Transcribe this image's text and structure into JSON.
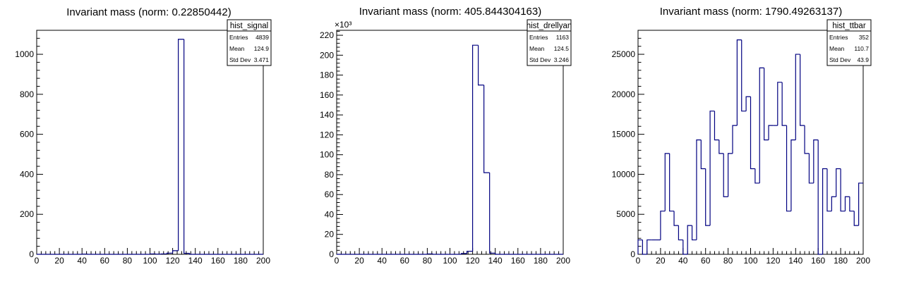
{
  "chart_data": [
    {
      "type": "histogram",
      "title": "Invariant mass (norm: 0.22850442)",
      "xlim": [
        0,
        200
      ],
      "ylim": [
        0,
        1120
      ],
      "x_ticks": [
        "0",
        "20",
        "40",
        "60",
        "80",
        "100",
        "120",
        "140",
        "160",
        "180",
        "200"
      ],
      "y_ticks": [
        0,
        200,
        400,
        600,
        800,
        1000
      ],
      "y_tick_labels": [
        "0",
        "200",
        "400",
        "600",
        "800",
        "1000"
      ],
      "y_exponent": "",
      "line_color": "#000080",
      "stats": {
        "name": "hist_signal",
        "rows": [
          {
            "label": "Entries",
            "value": "4839"
          },
          {
            "label": "Mean",
            "value": "124.9"
          },
          {
            "label": "Std Dev",
            "value": "3.471"
          }
        ]
      },
      "bins": [
        {
          "x0": 0,
          "x1": 40,
          "y": 0
        },
        {
          "x0": 40,
          "x1": 45,
          "y": 1
        },
        {
          "x0": 45,
          "x1": 100,
          "y": 0
        },
        {
          "x0": 100,
          "x1": 105,
          "y": 2
        },
        {
          "x0": 105,
          "x1": 110,
          "y": 1
        },
        {
          "x0": 110,
          "x1": 115,
          "y": 2
        },
        {
          "x0": 115,
          "x1": 120,
          "y": 6
        },
        {
          "x0": 120,
          "x1": 125,
          "y": 18
        },
        {
          "x0": 125,
          "x1": 130,
          "y": 1075
        },
        {
          "x0": 130,
          "x1": 135,
          "y": 5
        },
        {
          "x0": 135,
          "x1": 200,
          "y": 0
        }
      ]
    },
    {
      "type": "histogram",
      "title": "Invariant mass (norm: 405.844304163)",
      "xlim": [
        0,
        200
      ],
      "ylim": [
        0,
        225
      ],
      "x_ticks": [
        "0",
        "20",
        "40",
        "60",
        "80",
        "100",
        "120",
        "140",
        "160",
        "180",
        "200"
      ],
      "y_ticks": [
        0,
        20,
        40,
        60,
        80,
        100,
        120,
        140,
        160,
        180,
        200,
        220
      ],
      "y_tick_labels": [
        "0",
        "20",
        "40",
        "60",
        "80",
        "100",
        "120",
        "140",
        "160",
        "180",
        "200",
        "220"
      ],
      "y_exponent": "×10³",
      "line_color": "#000080",
      "stats": {
        "name": "hist_drellyan",
        "rows": [
          {
            "label": "Entries",
            "value": "1163"
          },
          {
            "label": "Mean",
            "value": "124.5"
          },
          {
            "label": "Std Dev",
            "value": "3.246"
          }
        ]
      },
      "bins": [
        {
          "x0": 0,
          "x1": 80,
          "y": 0
        },
        {
          "x0": 80,
          "x1": 85,
          "y": 0.4
        },
        {
          "x0": 85,
          "x1": 110,
          "y": 0
        },
        {
          "x0": 110,
          "x1": 115,
          "y": 0.8
        },
        {
          "x0": 115,
          "x1": 120,
          "y": 3
        },
        {
          "x0": 120,
          "x1": 125,
          "y": 210
        },
        {
          "x0": 125,
          "x1": 130,
          "y": 170
        },
        {
          "x0": 130,
          "x1": 135,
          "y": 82
        },
        {
          "x0": 135,
          "x1": 140,
          "y": 1.2
        },
        {
          "x0": 140,
          "x1": 200,
          "y": 0
        }
      ]
    },
    {
      "type": "histogram",
      "title": "Invariant mass (norm: 1790.49263137)",
      "xlim": [
        0,
        200
      ],
      "ylim": [
        0,
        28000
      ],
      "x_ticks": [
        "0",
        "20",
        "40",
        "60",
        "80",
        "100",
        "120",
        "140",
        "160",
        "180",
        "200"
      ],
      "y_ticks": [
        0,
        5000,
        10000,
        15000,
        20000,
        25000
      ],
      "y_tick_labels": [
        "0",
        "5000",
        "10000",
        "15000",
        "20000",
        "25000"
      ],
      "y_exponent": "",
      "line_color": "#000080",
      "stats": {
        "name": "hist_ttbar",
        "rows": [
          {
            "label": "Entries",
            "value": "352"
          },
          {
            "label": "Mean",
            "value": "110.7"
          },
          {
            "label": "Std Dev",
            "value": "43.9"
          }
        ]
      },
      "bins": [
        {
          "x0": 0,
          "x1": 4,
          "y": 1800
        },
        {
          "x0": 4,
          "x1": 8,
          "y": 0
        },
        {
          "x0": 8,
          "x1": 12,
          "y": 1800
        },
        {
          "x0": 12,
          "x1": 16,
          "y": 1800
        },
        {
          "x0": 16,
          "x1": 20,
          "y": 1800
        },
        {
          "x0": 20,
          "x1": 24,
          "y": 5400
        },
        {
          "x0": 24,
          "x1": 28,
          "y": 12600
        },
        {
          "x0": 28,
          "x1": 32,
          "y": 5400
        },
        {
          "x0": 32,
          "x1": 36,
          "y": 3600
        },
        {
          "x0": 36,
          "x1": 40,
          "y": 1800
        },
        {
          "x0": 40,
          "x1": 44,
          "y": 0
        },
        {
          "x0": 44,
          "x1": 48,
          "y": 3600
        },
        {
          "x0": 48,
          "x1": 52,
          "y": 1800
        },
        {
          "x0": 52,
          "x1": 56,
          "y": 14300
        },
        {
          "x0": 56,
          "x1": 60,
          "y": 10700
        },
        {
          "x0": 60,
          "x1": 64,
          "y": 3600
        },
        {
          "x0": 64,
          "x1": 68,
          "y": 17900
        },
        {
          "x0": 68,
          "x1": 72,
          "y": 14300
        },
        {
          "x0": 72,
          "x1": 76,
          "y": 12600
        },
        {
          "x0": 76,
          "x1": 80,
          "y": 7200
        },
        {
          "x0": 80,
          "x1": 84,
          "y": 12600
        },
        {
          "x0": 84,
          "x1": 88,
          "y": 16100
        },
        {
          "x0": 88,
          "x1": 92,
          "y": 26800
        },
        {
          "x0": 92,
          "x1": 96,
          "y": 17900
        },
        {
          "x0": 96,
          "x1": 100,
          "y": 19700
        },
        {
          "x0": 100,
          "x1": 104,
          "y": 10700
        },
        {
          "x0": 104,
          "x1": 108,
          "y": 8900
        },
        {
          "x0": 108,
          "x1": 112,
          "y": 23300
        },
        {
          "x0": 112,
          "x1": 116,
          "y": 14300
        },
        {
          "x0": 116,
          "x1": 120,
          "y": 16100
        },
        {
          "x0": 120,
          "x1": 124,
          "y": 16100
        },
        {
          "x0": 124,
          "x1": 128,
          "y": 21500
        },
        {
          "x0": 128,
          "x1": 132,
          "y": 16100
        },
        {
          "x0": 132,
          "x1": 136,
          "y": 5400
        },
        {
          "x0": 136,
          "x1": 140,
          "y": 14300
        },
        {
          "x0": 140,
          "x1": 144,
          "y": 25000
        },
        {
          "x0": 144,
          "x1": 148,
          "y": 16100
        },
        {
          "x0": 148,
          "x1": 152,
          "y": 12600
        },
        {
          "x0": 152,
          "x1": 156,
          "y": 8900
        },
        {
          "x0": 156,
          "x1": 160,
          "y": 14300
        },
        {
          "x0": 160,
          "x1": 164,
          "y": 0
        },
        {
          "x0": 164,
          "x1": 168,
          "y": 10700
        },
        {
          "x0": 168,
          "x1": 172,
          "y": 5400
        },
        {
          "x0": 172,
          "x1": 176,
          "y": 7200
        },
        {
          "x0": 176,
          "x1": 180,
          "y": 10700
        },
        {
          "x0": 180,
          "x1": 184,
          "y": 5400
        },
        {
          "x0": 184,
          "x1": 188,
          "y": 7200
        },
        {
          "x0": 188,
          "x1": 192,
          "y": 5400
        },
        {
          "x0": 192,
          "x1": 196,
          "y": 3600
        },
        {
          "x0": 196,
          "x1": 200,
          "y": 8900
        }
      ]
    }
  ]
}
